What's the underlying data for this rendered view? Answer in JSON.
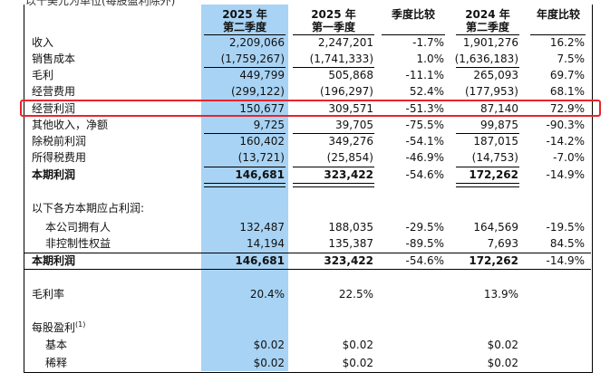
{
  "caption": "以千美元为单位(每股盈利除外)",
  "headers": [
    {
      "line1": "2025 年",
      "line2": "第二季度"
    },
    {
      "line1": "2025 年",
      "line2": "第一季度"
    },
    {
      "line1": "季度比较",
      "line2": ""
    },
    {
      "line1": "2024 年",
      "line2": "第二季度"
    },
    {
      "line1": "年度比较",
      "line2": ""
    }
  ],
  "rows": [
    {
      "label": "收入",
      "v": [
        "2,209,066",
        "2,247,201",
        "-1.7%",
        "1,901,276",
        "16.2%"
      ]
    },
    {
      "label": "销售成本",
      "v": [
        "(1,759,267)",
        "(1,741,333)",
        "1.0%",
        "(1,636,183)",
        "7.5%"
      ]
    },
    {
      "label": "毛利",
      "v": [
        "449,799",
        "505,868",
        "-11.1%",
        "265,093",
        "69.7%"
      ]
    },
    {
      "label": "经营费用",
      "v": [
        "(299,122)",
        "(196,297)",
        "52.4%",
        "(177,953)",
        "68.1%"
      ]
    },
    {
      "label": "经营利润",
      "v": [
        "150,677",
        "309,571",
        "-51.3%",
        "87,140",
        "72.9%"
      ]
    },
    {
      "label": "其他收入，净额",
      "v": [
        "9,725",
        "39,705",
        "-75.5%",
        "99,875",
        "-90.3%"
      ]
    },
    {
      "label": "除税前利润",
      "v": [
        "160,402",
        "349,276",
        "-54.1%",
        "187,015",
        "-14.2%"
      ]
    },
    {
      "label": "所得税费用",
      "v": [
        "(13,721)",
        "(25,854)",
        "-46.9%",
        "(14,753)",
        "-7.0%"
      ]
    },
    {
      "label": "本期利润",
      "v": [
        "146,681",
        "323,422",
        "-54.6%",
        "172,262",
        "-14.9%"
      ]
    }
  ],
  "attrib_title": "以下各方本期应占利润:",
  "attrib_rows": [
    {
      "label": "本公司拥有人",
      "v": [
        "132,487",
        "188,035",
        "-29.5%",
        "164,569",
        "-19.5%"
      ]
    },
    {
      "label": "非控制性权益",
      "v": [
        "14,194",
        "135,387",
        "-89.5%",
        "7,693",
        "84.5%"
      ]
    },
    {
      "label": "本期利润",
      "v": [
        "146,681",
        "323,422",
        "-54.6%",
        "172,262",
        "-14.9%"
      ]
    }
  ],
  "gross_margin": {
    "label": "毛利率",
    "v": [
      "20.4%",
      "22.5%",
      "",
      "13.9%",
      ""
    ]
  },
  "eps": {
    "title": "每股盈利",
    "footnote": "(1)",
    "rows": [
      {
        "label": "基本",
        "v": [
          "$0.02",
          "$0.02",
          "",
          "$0.02",
          ""
        ]
      },
      {
        "label": "稀释",
        "v": [
          "$0.02",
          "$0.02",
          "",
          "$0.02",
          ""
        ]
      }
    ]
  },
  "colors": {
    "highlight_column": "#a8d3f4",
    "highlight_box": "#e8232b"
  }
}
